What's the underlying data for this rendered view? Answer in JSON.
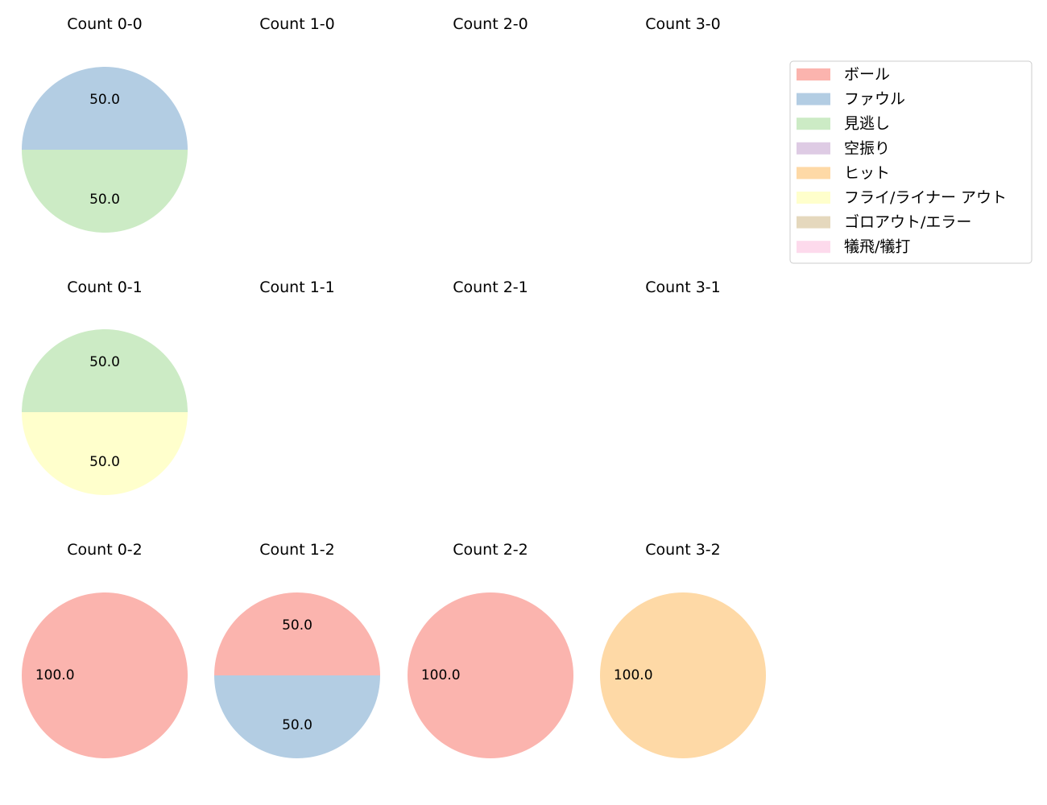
{
  "legend": {
    "entries": [
      {
        "label": "ボール",
        "color": "#fbb4ae"
      },
      {
        "label": "ファウル",
        "color": "#b3cde3"
      },
      {
        "label": "見逃し",
        "color": "#ccebc5"
      },
      {
        "label": "空振り",
        "color": "#decbe4"
      },
      {
        "label": "ヒット",
        "color": "#fed9a6"
      },
      {
        "label": "フライ/ライナー アウト",
        "color": "#ffffcc"
      },
      {
        "label": "ゴロアウト/エラー",
        "color": "#e5d8bd"
      },
      {
        "label": "犠飛/犠打",
        "color": "#fddaec"
      }
    ],
    "placement": "right"
  },
  "chart_data": [
    {
      "type": "pie",
      "title": "Count 0-0",
      "slices": [
        {
          "category": "ファウル",
          "value": 50.0
        },
        {
          "category": "見逃し",
          "value": 50.0
        }
      ]
    },
    {
      "type": "pie",
      "title": "Count 1-0",
      "slices": []
    },
    {
      "type": "pie",
      "title": "Count 2-0",
      "slices": []
    },
    {
      "type": "pie",
      "title": "Count 3-0",
      "slices": []
    },
    {
      "type": "pie",
      "title": "Count 0-1",
      "slices": [
        {
          "category": "見逃し",
          "value": 50.0
        },
        {
          "category": "フライ/ライナー アウト",
          "value": 50.0
        }
      ]
    },
    {
      "type": "pie",
      "title": "Count 1-1",
      "slices": []
    },
    {
      "type": "pie",
      "title": "Count 2-1",
      "slices": []
    },
    {
      "type": "pie",
      "title": "Count 3-1",
      "slices": []
    },
    {
      "type": "pie",
      "title": "Count 0-2",
      "slices": [
        {
          "category": "ボール",
          "value": 100.0
        }
      ]
    },
    {
      "type": "pie",
      "title": "Count 1-2",
      "slices": [
        {
          "category": "ボール",
          "value": 50.0
        },
        {
          "category": "ファウル",
          "value": 50.0
        }
      ]
    },
    {
      "type": "pie",
      "title": "Count 2-2",
      "slices": [
        {
          "category": "ボール",
          "value": 100.0
        }
      ]
    },
    {
      "type": "pie",
      "title": "Count 3-2",
      "slices": [
        {
          "category": "ヒット",
          "value": 100.0
        }
      ]
    }
  ]
}
